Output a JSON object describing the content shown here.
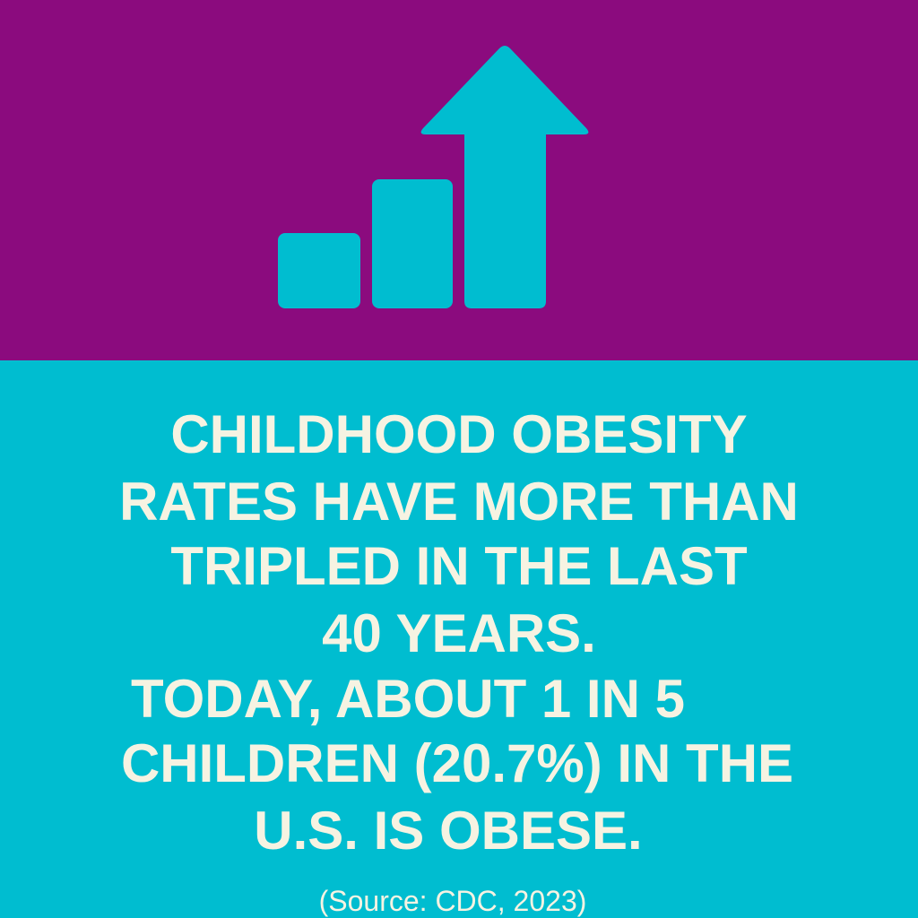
{
  "headline": {
    "lines": [
      "CHILDHOOD OBESITY",
      "RATES HAVE MORE THAN",
      "TRIPLED IN THE LAST",
      "40 YEARS.",
      "TODAY, ABOUT 1 IN 5",
      "CHILDREN (20.7%) IN THE",
      "U.S. IS OBESE."
    ]
  },
  "source": "(Source: CDC, 2023)"
}
